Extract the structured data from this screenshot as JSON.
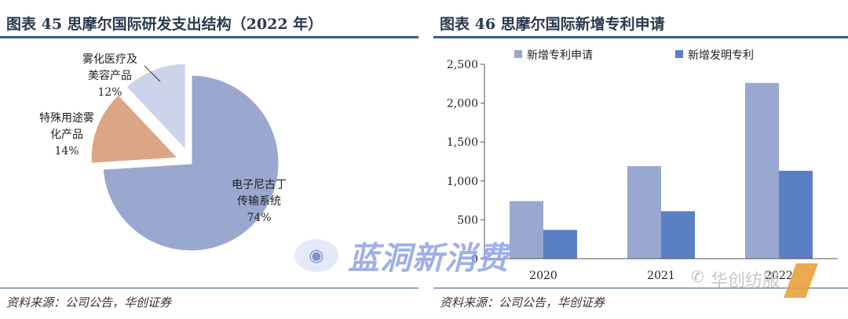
{
  "left_panel": {
    "title": "图表 45  思摩尔国际研发支出结构（2022 年）",
    "source": "资料来源：公司公告，华创证券"
  },
  "right_panel": {
    "title": "图表 46  思摩尔国际新增专利申请",
    "source": "资料来源：公司公告，华创证券"
  },
  "watermark": {
    "icon": "eye-icon",
    "text": "蓝洞新消费",
    "secondary_text": "华创纺服"
  },
  "chart_data": [
    {
      "type": "pie",
      "slices": [
        {
          "label_lines": [
            "电子尼古丁",
            "传输系统"
          ],
          "pct_label": "74%",
          "value": 74,
          "color": "#9aa7cf"
        },
        {
          "label_lines": [
            "特殊用途雾",
            "化产品"
          ],
          "pct_label": "14%",
          "value": 14,
          "color": "#dca585"
        },
        {
          "label_lines": [
            "雾化医疗及",
            "美容产品"
          ],
          "pct_label": "12%",
          "value": 12,
          "color": "#ccd3ea"
        }
      ]
    },
    {
      "type": "bar",
      "categories": [
        "2020",
        "2021",
        "2022"
      ],
      "series": [
        {
          "name": "新增专利申请",
          "values": [
            740,
            1190,
            2260
          ],
          "color": "#99a8cf"
        },
        {
          "name": "新增发明专利",
          "values": [
            370,
            610,
            1130
          ],
          "color": "#5b7fc4"
        }
      ],
      "ylim": [
        0,
        2500
      ],
      "yticks": [
        0,
        500,
        1000,
        1500,
        2000,
        2500
      ],
      "ytick_labels": [
        "0",
        "500",
        "1,000",
        "1,500",
        "2,000",
        "2,500"
      ],
      "legend_position": "top"
    }
  ]
}
